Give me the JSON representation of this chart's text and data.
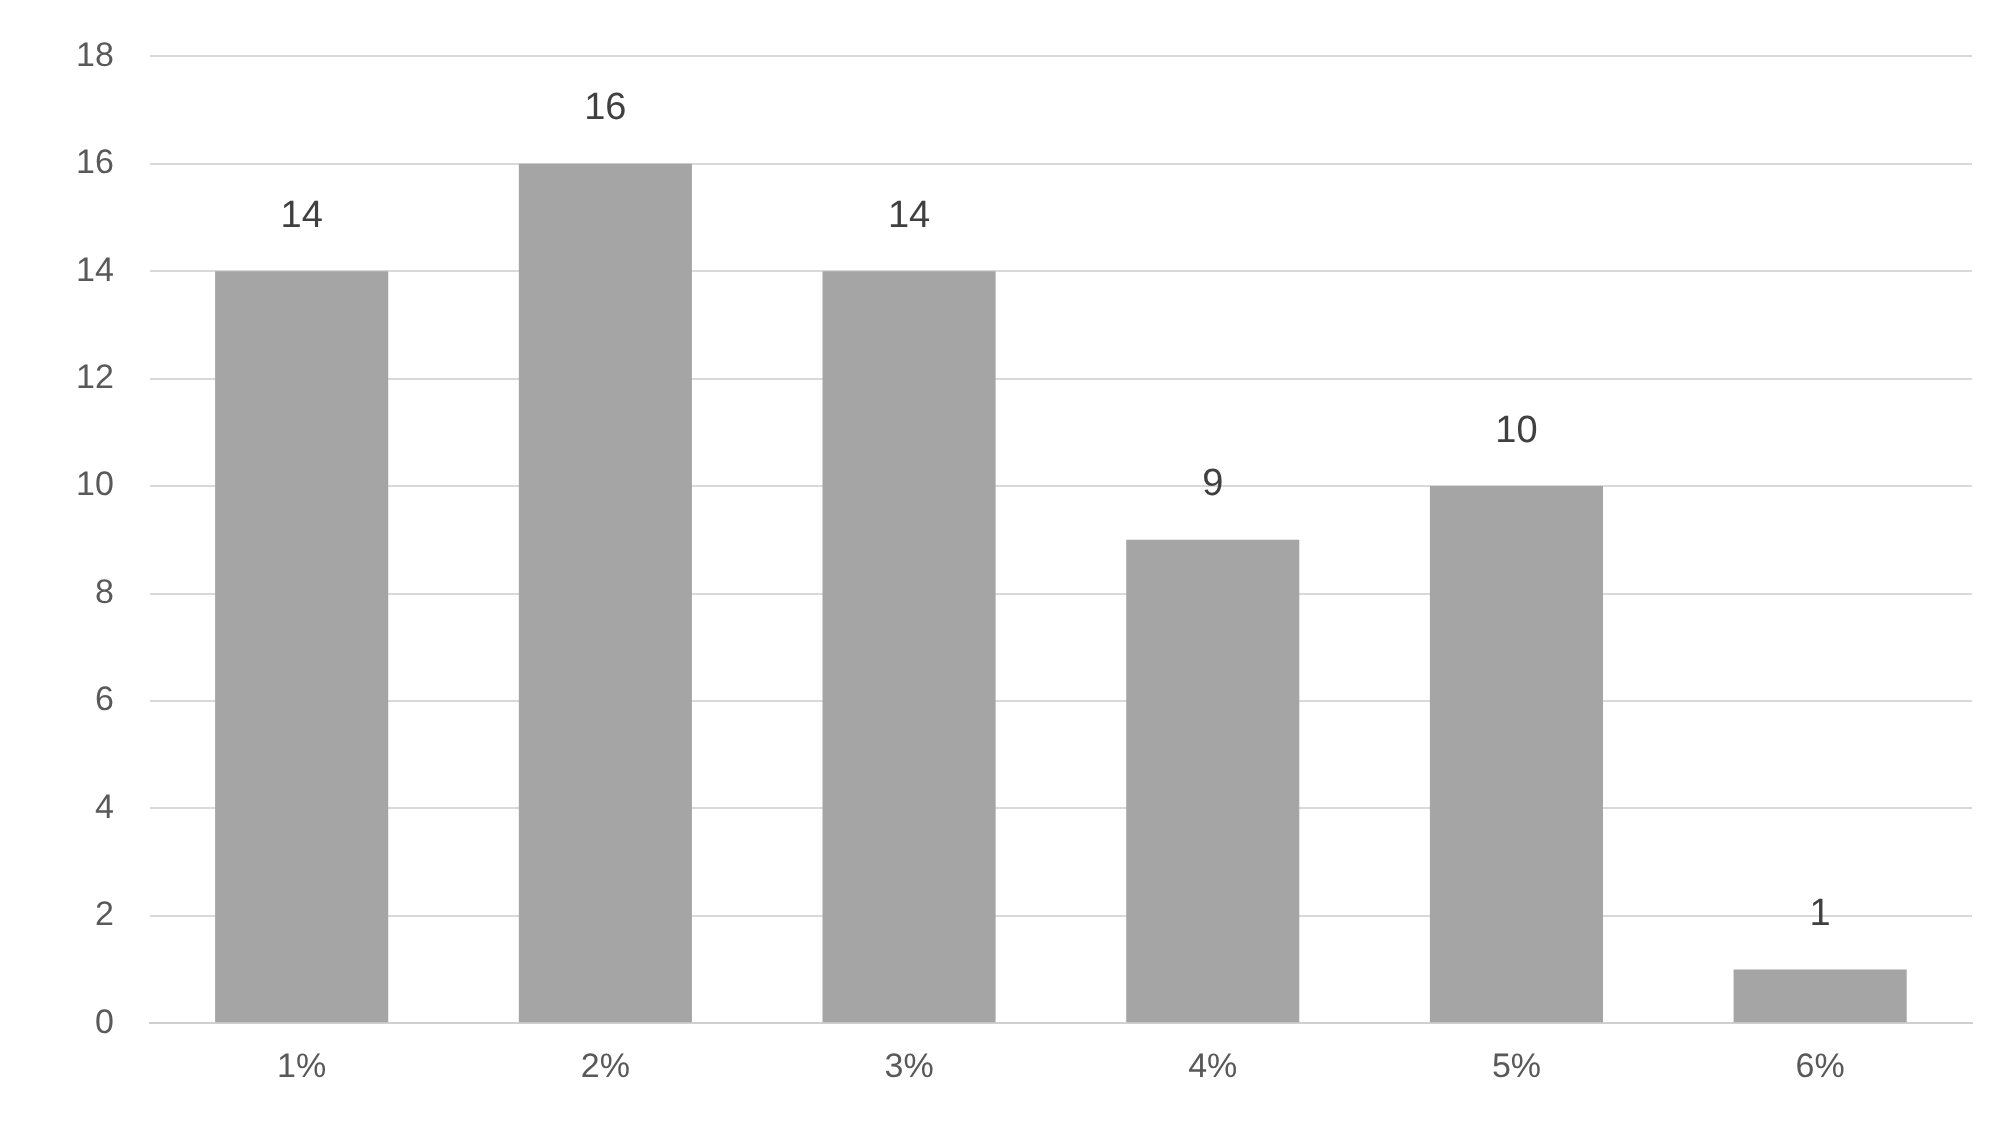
{
  "chart_data": {
    "type": "bar",
    "categories": [
      "1%",
      "2%",
      "3%",
      "4%",
      "5%",
      "6%"
    ],
    "values": [
      14,
      16,
      14,
      9,
      10,
      1
    ],
    "color": "#a5a5a5",
    "ylim": [
      0,
      18
    ],
    "yticks": [
      0,
      2,
      4,
      6,
      8,
      10,
      12,
      14,
      16,
      18
    ],
    "grid": "y",
    "data_labels": true
  }
}
